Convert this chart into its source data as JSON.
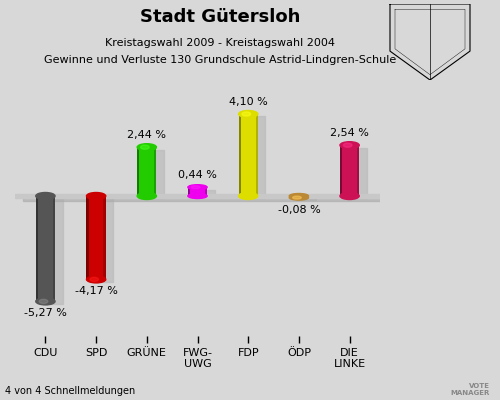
{
  "title": "Stadt Gütersloh",
  "subtitle1": "Kreistagswahl 2009 - Kreistagswahl 2004",
  "subtitle2": "Gewinne und Verluste 130 Grundschule Astrid-Lindgren-Schule",
  "footer": "4 von 4 Schnellmeldungen",
  "categories": [
    "CDU",
    "SPD",
    "GRÜNE",
    "FWG-\nUWG",
    "FDP",
    "ÖDP",
    "DIE\nLINKE"
  ],
  "values": [
    -5.27,
    -4.17,
    2.44,
    0.44,
    4.1,
    -0.08,
    2.54
  ],
  "labels": [
    "-5,27 %",
    "-4,17 %",
    "2,44 %",
    "0,44 %",
    "4,10 %",
    "-0,08 %",
    "2,54 %"
  ],
  "colors": [
    "#555555",
    "#cc0000",
    "#22cc00",
    "#ee00ee",
    "#dddd00",
    "#bb8833",
    "#cc1155"
  ],
  "bar_width": 0.38,
  "background_color": "#e0e0e0",
  "ylim": [
    -7.0,
    5.8
  ],
  "title_fontsize": 13,
  "subtitle_fontsize": 8,
  "label_fontsize": 8,
  "tick_fontsize": 8
}
